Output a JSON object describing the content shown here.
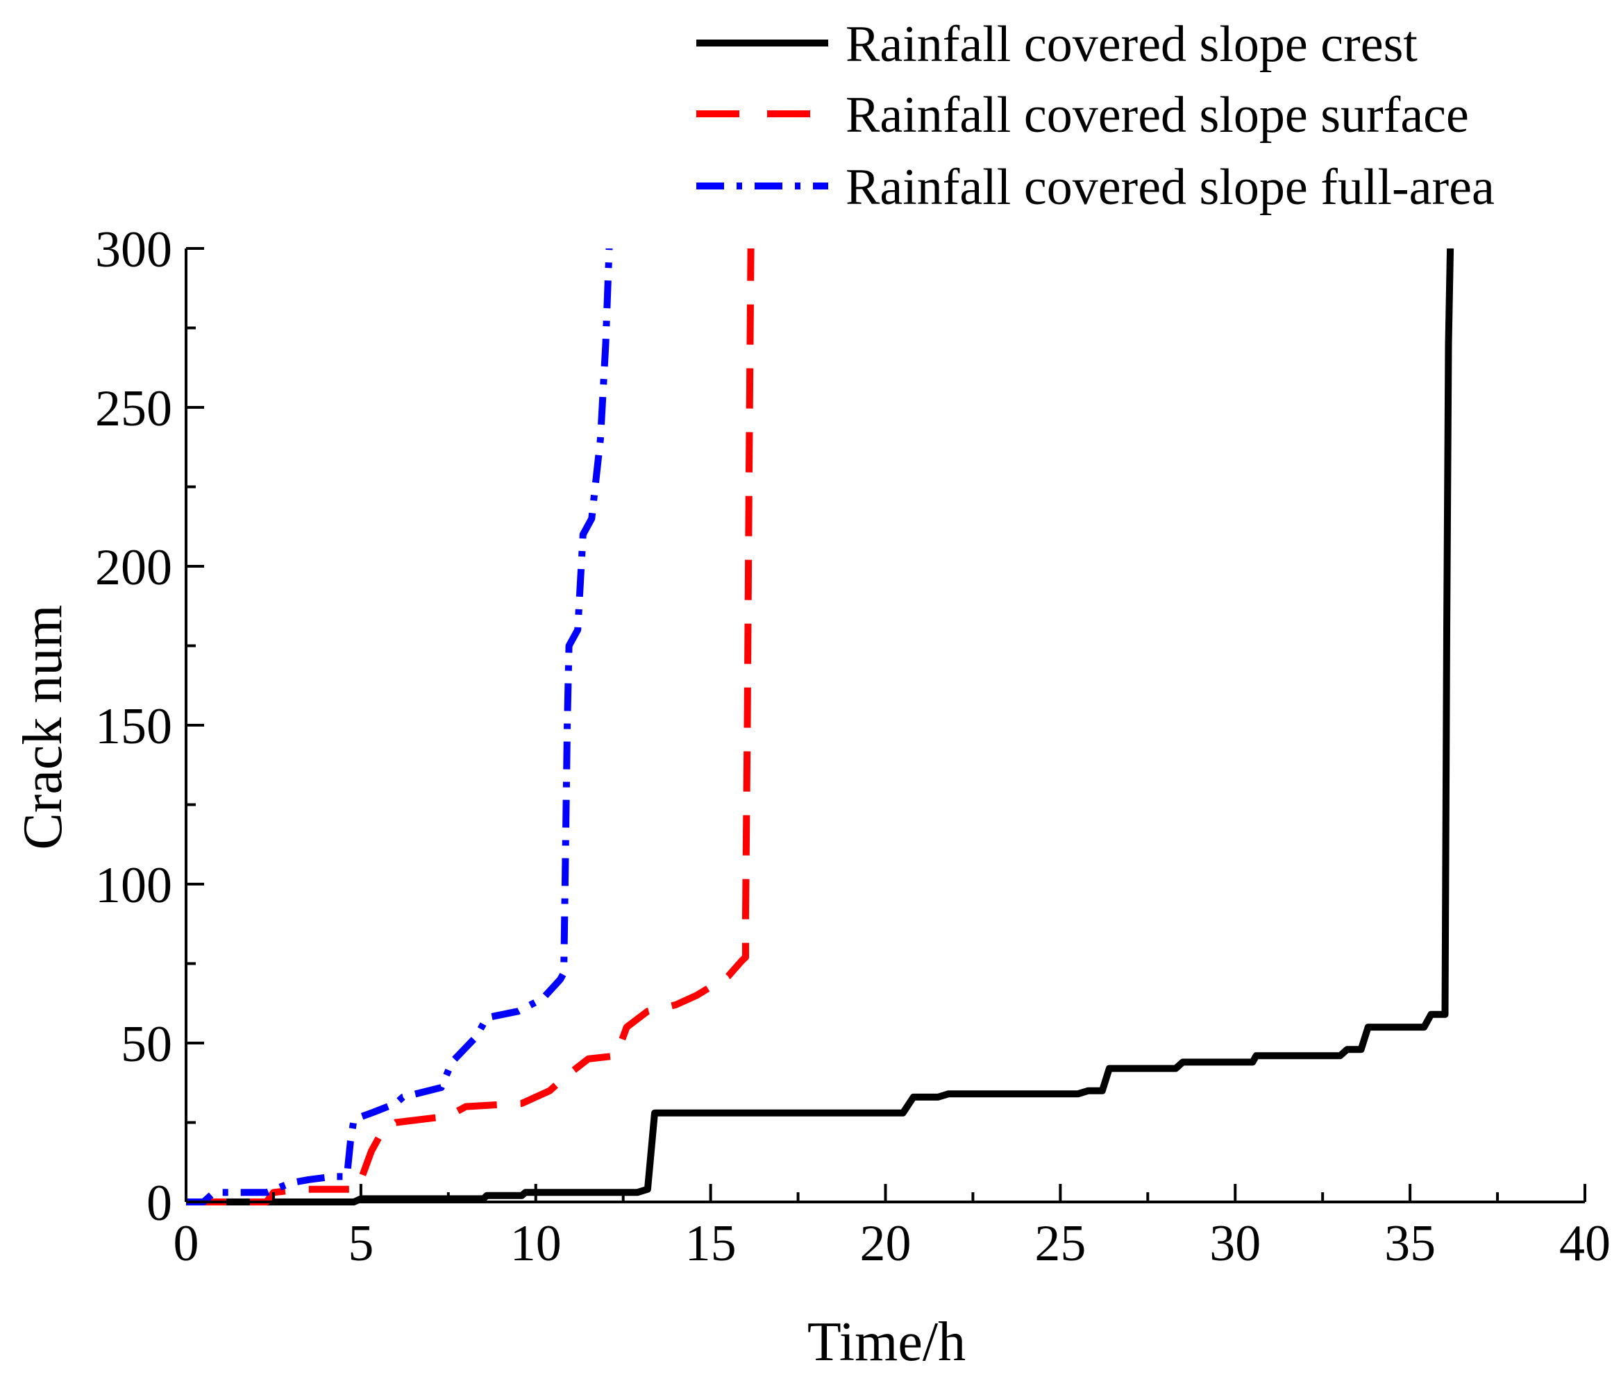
{
  "chart_data": {
    "type": "line",
    "title": "",
    "xlabel": "Time/h",
    "ylabel": "Crack num",
    "xlim": [
      0,
      40
    ],
    "ylim": [
      0,
      300
    ],
    "x_ticks": [
      0,
      5,
      10,
      15,
      20,
      25,
      30,
      35,
      40
    ],
    "y_ticks": [
      0,
      50,
      100,
      150,
      200,
      250,
      300
    ],
    "x_tick_labels": [
      "0",
      "5",
      "10",
      "15",
      "20",
      "25",
      "30",
      "35",
      "40"
    ],
    "y_tick_labels": [
      "0",
      "50",
      "100",
      "150",
      "200",
      "250",
      "300"
    ],
    "grid": false,
    "legend_position": "top-right",
    "series": [
      {
        "name": "Rainfall covered slope crest",
        "color": "#000000",
        "style": "solid",
        "points": [
          [
            0,
            0
          ],
          [
            4.8,
            0
          ],
          [
            5,
            1
          ],
          [
            8.5,
            1
          ],
          [
            8.6,
            2
          ],
          [
            9.6,
            2
          ],
          [
            9.7,
            3
          ],
          [
            12.9,
            3
          ],
          [
            13.2,
            4
          ],
          [
            13.4,
            28
          ],
          [
            20.5,
            28
          ],
          [
            20.8,
            33
          ],
          [
            21.5,
            33
          ],
          [
            21.8,
            34
          ],
          [
            25.5,
            34
          ],
          [
            25.8,
            35
          ],
          [
            26.2,
            35
          ],
          [
            26.4,
            42
          ],
          [
            28.3,
            42
          ],
          [
            28.5,
            44
          ],
          [
            30.5,
            44
          ],
          [
            30.6,
            46
          ],
          [
            33.0,
            46
          ],
          [
            33.2,
            48
          ],
          [
            33.6,
            48
          ],
          [
            33.8,
            55
          ],
          [
            35.4,
            55
          ],
          [
            35.6,
            59
          ],
          [
            36.0,
            59
          ],
          [
            36.05,
            180
          ],
          [
            36.1,
            270
          ],
          [
            36.15,
            300
          ]
        ]
      },
      {
        "name": "Rainfall covered slope surface",
        "color": "#ff0000",
        "style": "dashed",
        "points": [
          [
            0,
            0
          ],
          [
            2.3,
            0
          ],
          [
            2.5,
            3
          ],
          [
            3.3,
            4
          ],
          [
            4.7,
            4
          ],
          [
            4.8,
            7
          ],
          [
            5.0,
            7
          ],
          [
            5.3,
            16
          ],
          [
            5.6,
            22
          ],
          [
            6.0,
            25
          ],
          [
            7.5,
            27
          ],
          [
            8.0,
            30
          ],
          [
            9.6,
            31
          ],
          [
            10.4,
            35
          ],
          [
            10.8,
            39
          ],
          [
            11.5,
            45
          ],
          [
            12.3,
            46
          ],
          [
            12.6,
            55
          ],
          [
            13.2,
            60
          ],
          [
            14.0,
            62
          ],
          [
            14.6,
            65
          ],
          [
            15.5,
            71
          ],
          [
            15.9,
            76
          ],
          [
            16.0,
            77
          ],
          [
            16.0,
            90
          ],
          [
            16.05,
            150
          ],
          [
            16.1,
            230
          ],
          [
            16.15,
            300
          ]
        ]
      },
      {
        "name": "Rainfall covered slope full-area",
        "color": "#0000ff",
        "style": "dashdot",
        "points": [
          [
            0,
            0
          ],
          [
            0.5,
            0
          ],
          [
            0.8,
            3
          ],
          [
            1.5,
            3
          ],
          [
            2.3,
            3
          ],
          [
            3.0,
            6
          ],
          [
            3.5,
            7
          ],
          [
            4.2,
            8
          ],
          [
            4.6,
            8
          ],
          [
            4.7,
            19
          ],
          [
            4.8,
            26
          ],
          [
            5.3,
            28
          ],
          [
            6.0,
            31
          ],
          [
            6.2,
            33
          ],
          [
            7.3,
            36
          ],
          [
            7.6,
            44
          ],
          [
            8.3,
            52
          ],
          [
            8.6,
            58
          ],
          [
            9.5,
            60
          ],
          [
            10.2,
            64
          ],
          [
            10.7,
            70
          ],
          [
            10.8,
            72
          ],
          [
            10.85,
            110
          ],
          [
            10.9,
            150
          ],
          [
            10.95,
            175
          ],
          [
            11.2,
            180
          ],
          [
            11.35,
            210
          ],
          [
            11.6,
            215
          ],
          [
            11.85,
            240
          ],
          [
            12.0,
            270
          ],
          [
            12.1,
            300
          ]
        ]
      }
    ]
  }
}
